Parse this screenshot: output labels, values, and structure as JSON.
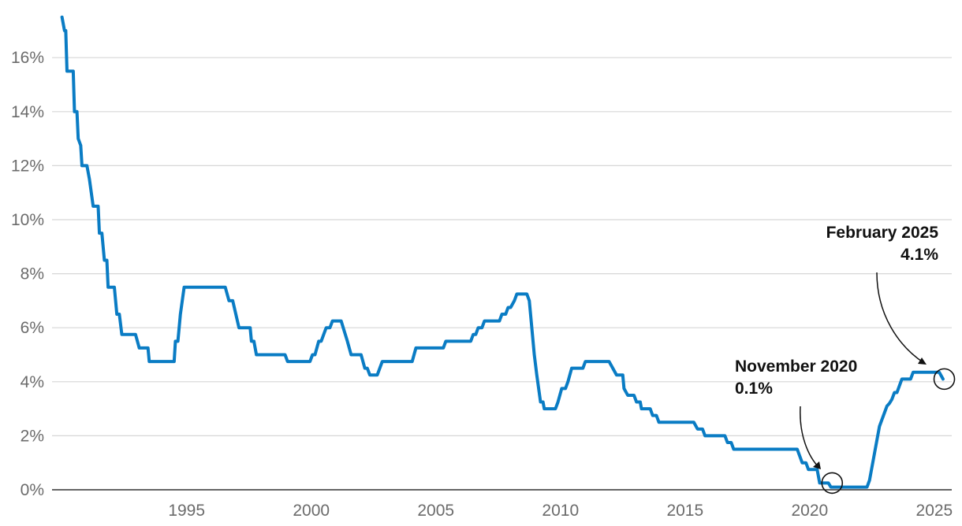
{
  "chart_data": {
    "type": "line",
    "title": "",
    "xlabel": "",
    "ylabel": "",
    "ylim": [
      0,
      17.5
    ],
    "xlim": [
      1989.6,
      2025.7
    ],
    "grid": true,
    "colors": {
      "line": "#0a7cc4",
      "grid": "#d6d6d6",
      "axis": "#333333"
    },
    "y_ticks": [
      {
        "value": 0,
        "label": "0%"
      },
      {
        "value": 2,
        "label": "2%"
      },
      {
        "value": 4,
        "label": "4%"
      },
      {
        "value": 6,
        "label": "6%"
      },
      {
        "value": 8,
        "label": "8%"
      },
      {
        "value": 10,
        "label": "10%"
      },
      {
        "value": 12,
        "label": "12%"
      },
      {
        "value": 14,
        "label": "14%"
      },
      {
        "value": 16,
        "label": "16%"
      }
    ],
    "x_ticks": [
      {
        "value": 1995,
        "label": "1995"
      },
      {
        "value": 2000,
        "label": "2000"
      },
      {
        "value": 2005,
        "label": "2005"
      },
      {
        "value": 2010,
        "label": "2010"
      },
      {
        "value": 2015,
        "label": "2015"
      },
      {
        "value": 2020,
        "label": "2020"
      },
      {
        "value": 2025,
        "label": "2025"
      }
    ],
    "series": [
      {
        "points": [
          [
            1990.0,
            17.5
          ],
          [
            1990.1,
            17.0
          ],
          [
            1990.15,
            17.0
          ],
          [
            1990.2,
            15.5
          ],
          [
            1990.45,
            15.5
          ],
          [
            1990.5,
            14.0
          ],
          [
            1990.6,
            14.0
          ],
          [
            1990.65,
            13.0
          ],
          [
            1990.75,
            12.75
          ],
          [
            1990.8,
            12.0
          ],
          [
            1991.0,
            12.0
          ],
          [
            1991.1,
            11.5
          ],
          [
            1991.25,
            10.5
          ],
          [
            1991.45,
            10.5
          ],
          [
            1991.5,
            9.5
          ],
          [
            1991.6,
            9.5
          ],
          [
            1991.7,
            8.5
          ],
          [
            1991.8,
            8.5
          ],
          [
            1991.85,
            7.5
          ],
          [
            1992.1,
            7.5
          ],
          [
            1992.2,
            6.5
          ],
          [
            1992.3,
            6.5
          ],
          [
            1992.4,
            5.75
          ],
          [
            1992.95,
            5.75
          ],
          [
            1993.1,
            5.25
          ],
          [
            1993.45,
            5.25
          ],
          [
            1993.5,
            4.75
          ],
          [
            1994.5,
            4.75
          ],
          [
            1994.55,
            5.5
          ],
          [
            1994.65,
            5.5
          ],
          [
            1994.75,
            6.5
          ],
          [
            1994.9,
            7.5
          ],
          [
            1996.55,
            7.5
          ],
          [
            1996.7,
            7.0
          ],
          [
            1996.85,
            7.0
          ],
          [
            1997.1,
            6.0
          ],
          [
            1997.55,
            6.0
          ],
          [
            1997.6,
            5.5
          ],
          [
            1997.7,
            5.5
          ],
          [
            1997.8,
            5.0
          ],
          [
            1998.95,
            5.0
          ],
          [
            1999.05,
            4.75
          ],
          [
            1999.95,
            4.75
          ],
          [
            2000.05,
            5.0
          ],
          [
            2000.15,
            5.0
          ],
          [
            2000.3,
            5.5
          ],
          [
            2000.4,
            5.5
          ],
          [
            2000.6,
            6.0
          ],
          [
            2000.75,
            6.0
          ],
          [
            2000.85,
            6.25
          ],
          [
            2001.2,
            6.25
          ],
          [
            2001.45,
            5.5
          ],
          [
            2001.6,
            5.0
          ],
          [
            2002.0,
            5.0
          ],
          [
            2002.15,
            4.5
          ],
          [
            2002.25,
            4.5
          ],
          [
            2002.35,
            4.25
          ],
          [
            2002.65,
            4.25
          ],
          [
            2002.85,
            4.75
          ],
          [
            2004.05,
            4.75
          ],
          [
            2004.2,
            5.25
          ],
          [
            2005.3,
            5.25
          ],
          [
            2005.4,
            5.5
          ],
          [
            2006.4,
            5.5
          ],
          [
            2006.5,
            5.75
          ],
          [
            2006.6,
            5.75
          ],
          [
            2006.7,
            6.0
          ],
          [
            2006.85,
            6.0
          ],
          [
            2006.95,
            6.25
          ],
          [
            2007.55,
            6.25
          ],
          [
            2007.65,
            6.5
          ],
          [
            2007.8,
            6.5
          ],
          [
            2007.9,
            6.75
          ],
          [
            2008.0,
            6.75
          ],
          [
            2008.15,
            7.0
          ],
          [
            2008.25,
            7.25
          ],
          [
            2008.65,
            7.25
          ],
          [
            2008.75,
            7.0
          ],
          [
            2008.85,
            6.0
          ],
          [
            2008.95,
            5.0
          ],
          [
            2009.05,
            4.25
          ],
          [
            2009.2,
            3.25
          ],
          [
            2009.3,
            3.25
          ],
          [
            2009.35,
            3.0
          ],
          [
            2009.8,
            3.0
          ],
          [
            2009.9,
            3.25
          ],
          [
            2010.05,
            3.75
          ],
          [
            2010.2,
            3.75
          ],
          [
            2010.3,
            4.0
          ],
          [
            2010.45,
            4.5
          ],
          [
            2010.9,
            4.5
          ],
          [
            2011.0,
            4.75
          ],
          [
            2011.95,
            4.75
          ],
          [
            2012.1,
            4.5
          ],
          [
            2012.25,
            4.25
          ],
          [
            2012.5,
            4.25
          ],
          [
            2012.55,
            3.75
          ],
          [
            2012.7,
            3.5
          ],
          [
            2012.95,
            3.5
          ],
          [
            2013.05,
            3.25
          ],
          [
            2013.2,
            3.25
          ],
          [
            2013.25,
            3.0
          ],
          [
            2013.6,
            3.0
          ],
          [
            2013.7,
            2.75
          ],
          [
            2013.85,
            2.75
          ],
          [
            2013.95,
            2.5
          ],
          [
            2015.35,
            2.5
          ],
          [
            2015.5,
            2.25
          ],
          [
            2015.7,
            2.25
          ],
          [
            2015.8,
            2.0
          ],
          [
            2016.6,
            2.0
          ],
          [
            2016.7,
            1.75
          ],
          [
            2016.85,
            1.75
          ],
          [
            2016.95,
            1.5
          ],
          [
            2019.5,
            1.5
          ],
          [
            2019.7,
            1.0
          ],
          [
            2019.85,
            1.0
          ],
          [
            2019.95,
            0.75
          ],
          [
            2020.3,
            0.75
          ],
          [
            2020.4,
            0.25
          ],
          [
            2020.75,
            0.25
          ],
          [
            2020.85,
            0.1
          ],
          [
            2022.3,
            0.1
          ],
          [
            2022.4,
            0.35
          ],
          [
            2022.5,
            0.85
          ],
          [
            2022.6,
            1.35
          ],
          [
            2022.7,
            1.85
          ],
          [
            2022.8,
            2.35
          ],
          [
            2022.9,
            2.6
          ],
          [
            2023.0,
            2.85
          ],
          [
            2023.1,
            3.1
          ],
          [
            2023.2,
            3.2
          ],
          [
            2023.3,
            3.35
          ],
          [
            2023.4,
            3.6
          ],
          [
            2023.5,
            3.6
          ],
          [
            2023.6,
            3.85
          ],
          [
            2023.7,
            4.1
          ],
          [
            2024.05,
            4.1
          ],
          [
            2024.15,
            4.35
          ],
          [
            2025.2,
            4.35
          ],
          [
            2025.35,
            4.1
          ]
        ]
      }
    ],
    "annotations": [
      {
        "title": "November 2020",
        "value": "0.1%",
        "x": 2020.9,
        "y": 0.25
      },
      {
        "title": "February 2025",
        "value": "4.1%",
        "x": 2025.4,
        "y": 4.1
      }
    ]
  }
}
